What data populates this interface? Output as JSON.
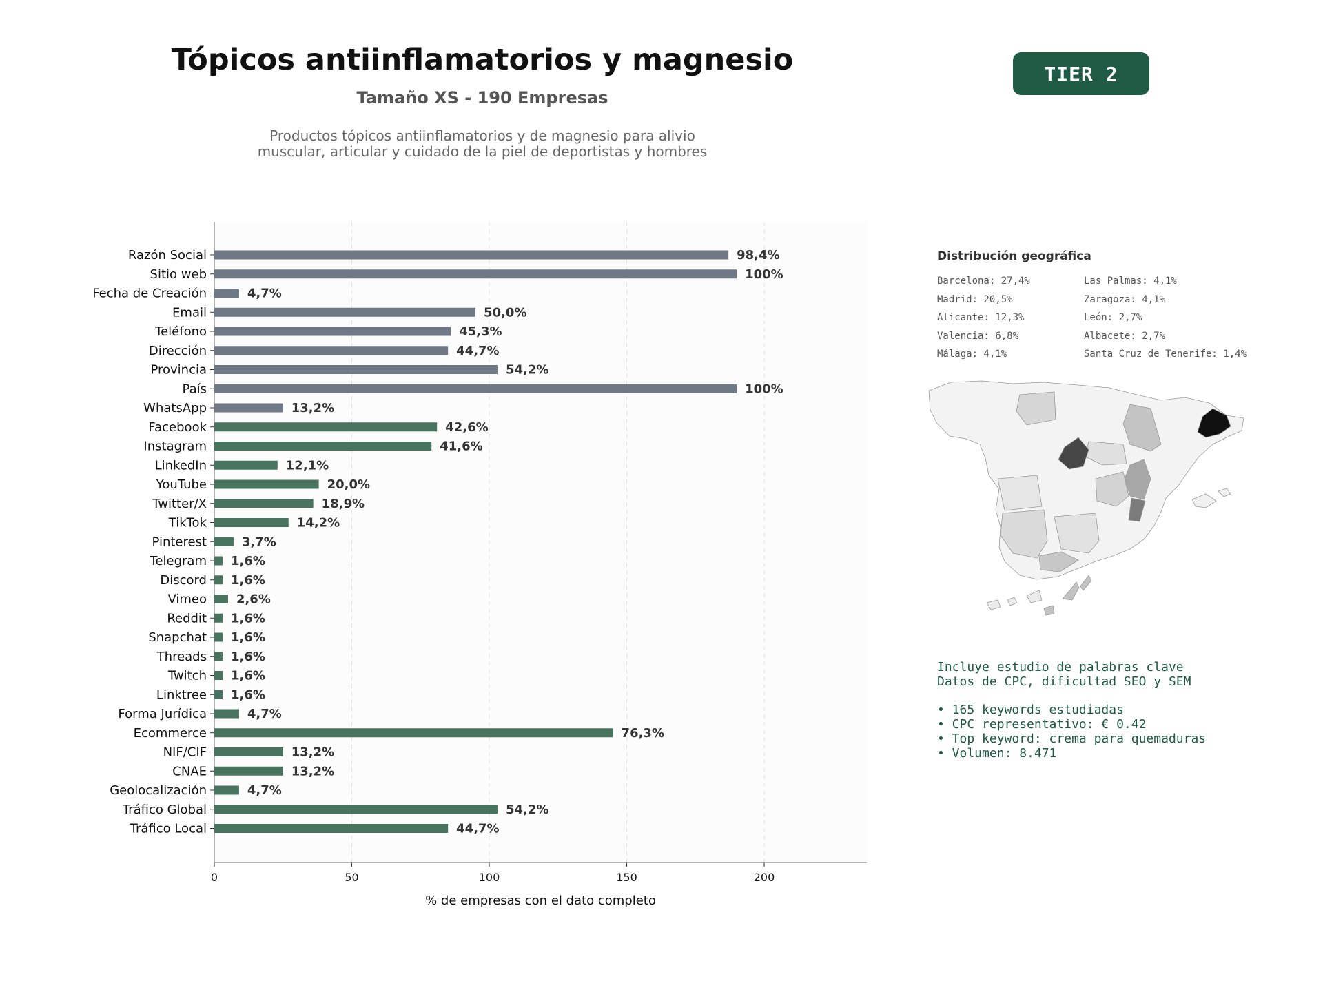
{
  "header": {
    "title": "Tópicos antiinflamatorios y magnesio",
    "subtitle": "Tamaño XS - 190 Empresas",
    "description_lines": [
      "Productos tópicos antiinflamatorios y de magnesio para alivio",
      "muscular, articular y cuidado de la piel de deportistas y hombres"
    ],
    "tier": "TIER 2"
  },
  "colors": {
    "gray_bar": "#6e7985",
    "green_bar": "#48735f",
    "accent": "#1e5a44"
  },
  "chart_data": {
    "type": "bar",
    "orientation": "horizontal",
    "xlabel": "% de empresas con el dato completo",
    "xlim": [
      0,
      237
    ],
    "xticks": [
      0,
      50,
      100,
      150,
      200
    ],
    "grid": "x-dashed",
    "categories": [
      "Razón Social",
      "Sitio web",
      "Fecha de Creación",
      "Email",
      "Teléfono",
      "Dirección",
      "Provincia",
      "País",
      "WhatsApp",
      "Facebook",
      "Instagram",
      "LinkedIn",
      "YouTube",
      "Twitter/X",
      "TikTok",
      "Pinterest",
      "Telegram",
      "Discord",
      "Vimeo",
      "Reddit",
      "Snapchat",
      "Threads",
      "Twitch",
      "Linktree",
      "Forma Jurídica",
      "Ecommerce",
      "NIF/CIF",
      "CNAE",
      "Geolocalización",
      "Tráfico Global",
      "Tráfico Local"
    ],
    "values": [
      187,
      190,
      9,
      95,
      86,
      85,
      103,
      190,
      25,
      81,
      79,
      23,
      38,
      36,
      27,
      7,
      3,
      3,
      5,
      3,
      3,
      3,
      3,
      3,
      9,
      145,
      25,
      25,
      9,
      103,
      85
    ],
    "labels": [
      "98,4%",
      "100%",
      "4,7%",
      "50,0%",
      "45,3%",
      "44,7%",
      "54,2%",
      "100%",
      "13,2%",
      "42,6%",
      "41,6%",
      "12,1%",
      "20,0%",
      "18,9%",
      "14,2%",
      "3,7%",
      "1,6%",
      "1,6%",
      "2,6%",
      "1,6%",
      "1,6%",
      "1,6%",
      "1,6%",
      "1,6%",
      "4,7%",
      "76,3%",
      "13,2%",
      "13,2%",
      "4,7%",
      "54,2%",
      "44,7%"
    ],
    "color_groups": [
      "gray",
      "gray",
      "gray",
      "gray",
      "gray",
      "gray",
      "gray",
      "gray",
      "gray",
      "green",
      "green",
      "green",
      "green",
      "green",
      "green",
      "green",
      "green",
      "green",
      "green",
      "green",
      "green",
      "green",
      "green",
      "green",
      "green",
      "green",
      "green",
      "green",
      "green",
      "green",
      "green"
    ]
  },
  "geo": {
    "title": "Distribución geográfica",
    "left": [
      "Barcelona: 27,4%",
      "Madrid: 20,5%",
      "Alicante: 12,3%",
      "Valencia: 6,8%",
      "Málaga: 4,1%"
    ],
    "right": [
      "Las Palmas: 4,1%",
      "Zaragoza: 4,1%",
      "León: 2,7%",
      "Albacete: 2,7%",
      "Santa Cruz de Tenerife: 1,4%"
    ]
  },
  "keywords": {
    "line1": "Incluye estudio de palabras clave",
    "line2": "Datos de CPC, dificultad SEO y SEM",
    "items": [
      "• 165 keywords estudiadas",
      "• CPC representativo: € 0.42",
      "• Top keyword: crema para quemaduras",
      "• Volumen: 8.471"
    ]
  }
}
